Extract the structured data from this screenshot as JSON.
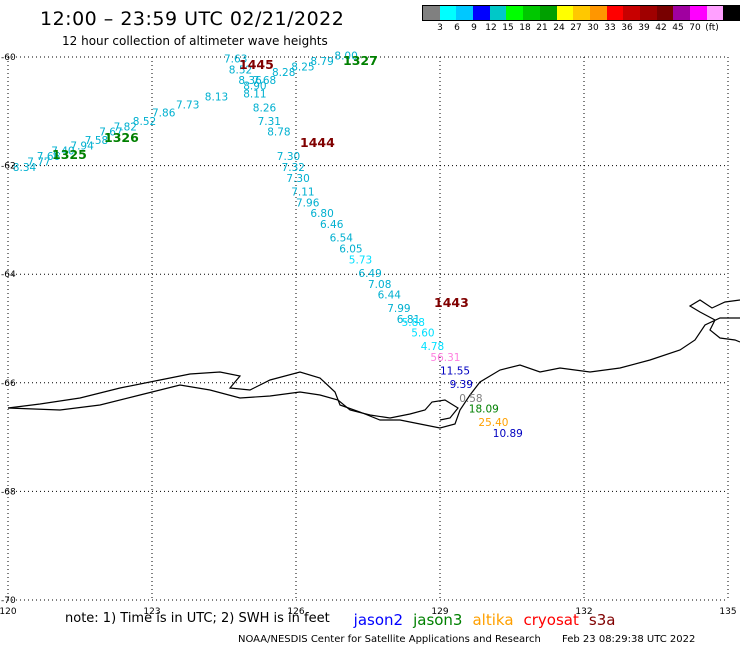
{
  "header": {
    "title": "12:00 – 23:59 UTC 02/21/2022",
    "subtitle": "12 hour collection of altimeter wave heights"
  },
  "colorbar": {
    "colors": [
      "#808080",
      "#00ffff",
      "#00c8ff",
      "#0000ff",
      "#00c8c8",
      "#00ff00",
      "#00c800",
      "#00a000",
      "#ffff00",
      "#ffc800",
      "#ff9600",
      "#ff0000",
      "#c80000",
      "#a00000",
      "#780000",
      "#a000a0",
      "#ff00ff",
      "#ffa0ff",
      "#000000"
    ],
    "labels": [
      "3",
      "6",
      "9",
      "12",
      "15",
      "18",
      "21",
      "24",
      "27",
      "30",
      "33",
      "36",
      "39",
      "42",
      "45",
      "70",
      "(ft)"
    ]
  },
  "map": {
    "lon_ticks": [
      "120",
      "123",
      "126",
      "129",
      "132",
      "135"
    ],
    "lat_ticks": [
      "-60",
      "-62",
      "-64",
      "-66",
      "-68",
      "-70"
    ],
    "passes": [
      {
        "name": "1325",
        "color": "#008000"
      },
      {
        "name": "1326",
        "color": "#008000"
      },
      {
        "name": "1327",
        "color": "#008000"
      },
      {
        "name": "1443",
        "color": "#800000"
      },
      {
        "name": "1444",
        "color": "#800000"
      },
      {
        "name": "1445",
        "color": "#800000"
      }
    ],
    "swh_labels": [
      {
        "v": "8.34",
        "lon": 120.1,
        "lat": -62.1,
        "c": "#00b0d0"
      },
      {
        "v": "7.77",
        "lon": 120.4,
        "lat": -62.0,
        "c": "#00b0d0"
      },
      {
        "v": "7.66",
        "lon": 120.6,
        "lat": -61.9,
        "c": "#00b0d0"
      },
      {
        "v": "7.40",
        "lon": 120.9,
        "lat": -61.8,
        "c": "#00b0d0"
      },
      {
        "v": "7.94",
        "lon": 121.3,
        "lat": -61.7,
        "c": "#00b0d0"
      },
      {
        "v": "7.58",
        "lon": 121.6,
        "lat": -61.6,
        "c": "#00b0d0"
      },
      {
        "v": "7.67",
        "lon": 121.9,
        "lat": -61.45,
        "c": "#00b0d0"
      },
      {
        "v": "7.82",
        "lon": 122.2,
        "lat": -61.35,
        "c": "#00b0d0"
      },
      {
        "v": "8.52",
        "lon": 122.6,
        "lat": -61.25,
        "c": "#00b0d0"
      },
      {
        "v": "7.86",
        "lon": 123.0,
        "lat": -61.1,
        "c": "#00b0d0"
      },
      {
        "v": "7.73",
        "lon": 123.5,
        "lat": -60.95,
        "c": "#00b0d0"
      },
      {
        "v": "8.13",
        "lon": 124.1,
        "lat": -60.8,
        "c": "#00b0d0"
      },
      {
        "v": "7.63",
        "lon": 124.5,
        "lat": -60.1,
        "c": "#00b0d0"
      },
      {
        "v": "8.52",
        "lon": 124.6,
        "lat": -60.3,
        "c": "#00b0d0"
      },
      {
        "v": "8.36",
        "lon": 124.8,
        "lat": -60.5,
        "c": "#00b0d0"
      },
      {
        "v": "7.68",
        "lon": 125.1,
        "lat": -60.5,
        "c": "#00b0d0"
      },
      {
        "v": "8.90",
        "lon": 124.9,
        "lat": -60.6,
        "c": "#00b0d0"
      },
      {
        "v": "8.11",
        "lon": 124.9,
        "lat": -60.75,
        "c": "#00b0d0"
      },
      {
        "v": "8.28",
        "lon": 125.5,
        "lat": -60.35,
        "c": "#00b0d0"
      },
      {
        "v": "8.25",
        "lon": 125.9,
        "lat": -60.25,
        "c": "#00b0d0"
      },
      {
        "v": "8.79",
        "lon": 126.3,
        "lat": -60.15,
        "c": "#00b0d0"
      },
      {
        "v": "8.00",
        "lon": 126.8,
        "lat": -60.05,
        "c": "#00b0d0"
      },
      {
        "v": "8.26",
        "lon": 125.1,
        "lat": -61.0,
        "c": "#00b0d0"
      },
      {
        "v": "7.31",
        "lon": 125.2,
        "lat": -61.25,
        "c": "#00b0d0"
      },
      {
        "v": "8.78",
        "lon": 125.4,
        "lat": -61.45,
        "c": "#00b0d0"
      },
      {
        "v": "7.30",
        "lon": 125.6,
        "lat": -61.9,
        "c": "#00b0d0"
      },
      {
        "v": "7.32",
        "lon": 125.7,
        "lat": -62.1,
        "c": "#00b0d0"
      },
      {
        "v": "7.30",
        "lon": 125.8,
        "lat": -62.3,
        "c": "#00b0d0"
      },
      {
        "v": "7.11",
        "lon": 125.9,
        "lat": -62.55,
        "c": "#00b0d0"
      },
      {
        "v": "7.96",
        "lon": 126.0,
        "lat": -62.75,
        "c": "#00b0d0"
      },
      {
        "v": "6.80",
        "lon": 126.3,
        "lat": -62.95,
        "c": "#00b0d0"
      },
      {
        "v": "6.46",
        "lon": 126.5,
        "lat": -63.15,
        "c": "#00b0d0"
      },
      {
        "v": "6.54",
        "lon": 126.7,
        "lat": -63.4,
        "c": "#00b0d0"
      },
      {
        "v": "6.05",
        "lon": 126.9,
        "lat": -63.6,
        "c": "#00b0d0"
      },
      {
        "v": "5.73",
        "lon": 127.1,
        "lat": -63.8,
        "c": "#00e0ff"
      },
      {
        "v": "6.49",
        "lon": 127.3,
        "lat": -64.05,
        "c": "#00b0d0"
      },
      {
        "v": "7.08",
        "lon": 127.5,
        "lat": -64.25,
        "c": "#00b0d0"
      },
      {
        "v": "6.44",
        "lon": 127.7,
        "lat": -64.45,
        "c": "#00b0d0"
      },
      {
        "v": "7.99",
        "lon": 127.9,
        "lat": -64.7,
        "c": "#00b0d0"
      },
      {
        "v": "6.81",
        "lon": 128.1,
        "lat": -64.9,
        "c": "#00b0d0"
      },
      {
        "v": "5.88",
        "lon": 128.2,
        "lat": -64.95,
        "c": "#00e0ff"
      },
      {
        "v": "5.60",
        "lon": 128.4,
        "lat": -65.15,
        "c": "#00e0ff"
      },
      {
        "v": "4.78",
        "lon": 128.6,
        "lat": -65.4,
        "c": "#00e0ff"
      },
      {
        "v": "56.31",
        "lon": 128.8,
        "lat": -65.6,
        "c": "#ff80e0"
      },
      {
        "v": "11.55",
        "lon": 129.0,
        "lat": -65.85,
        "c": "#0000c0"
      },
      {
        "v": "9.39",
        "lon": 129.2,
        "lat": -66.1,
        "c": "#0000c0"
      },
      {
        "v": "0.58",
        "lon": 129.4,
        "lat": -66.35,
        "c": "#808080"
      },
      {
        "v": "18.09",
        "lon": 129.6,
        "lat": -66.55,
        "c": "#008000"
      },
      {
        "v": "25.40",
        "lon": 129.8,
        "lat": -66.8,
        "c": "#ffa000"
      },
      {
        "v": "10.89",
        "lon": 130.1,
        "lat": -67.0,
        "c": "#0000c0"
      }
    ]
  },
  "note": {
    "text": "note: 1) Time is in UTC; 2) SWH is in feet",
    "satellites": [
      {
        "name": "jason2",
        "color": "#0000ff"
      },
      {
        "name": "jason3",
        "color": "#008000"
      },
      {
        "name": "altika",
        "color": "#ffa000"
      },
      {
        "name": "cryosat",
        "color": "#ff0000"
      },
      {
        "name": "s3a",
        "color": "#800000"
      }
    ]
  },
  "footer": {
    "center": "NOAA/NESDIS Center for Satellite Applications and Research",
    "timestamp": "Feb 23 08:29:38 UTC 2022"
  }
}
